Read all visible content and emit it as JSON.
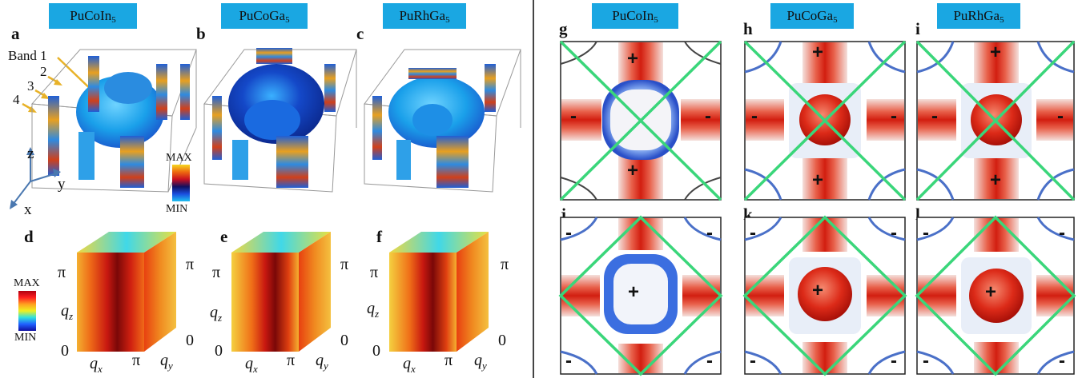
{
  "materials": [
    {
      "base": "PuCoIn",
      "sub": "5"
    },
    {
      "base": "PuCoGa",
      "sub": "5"
    },
    {
      "base": "PuRhGa",
      "sub": "5"
    }
  ],
  "panels": [
    "a",
    "b",
    "c",
    "d",
    "e",
    "f",
    "g",
    "h",
    "i",
    "j",
    "k",
    "l"
  ],
  "band_labels": {
    "band1": "Band 1",
    "b2": "2",
    "b3": "3",
    "b4": "4"
  },
  "axes3d": {
    "z": "z",
    "y": "y",
    "x": "x"
  },
  "colorbar_top": {
    "max": "MAX",
    "min": "MIN"
  },
  "colorbar_bottom": {
    "max": "MAX",
    "min": "MIN"
  },
  "q_axes": {
    "pi": "π",
    "zero": "0",
    "qz_base": "q",
    "qz_sub": "z",
    "qx_base": "q",
    "qx_sub": "x",
    "qy_base": "q",
    "qy_sub": "y"
  },
  "signs": {
    "plus": "+",
    "minus": "-"
  },
  "colors": {
    "label_bg": "#1aa7e2",
    "green_line": "#3ad67a",
    "fermi_blue": "#3a7de0",
    "hot_red": "#d61a10"
  }
}
